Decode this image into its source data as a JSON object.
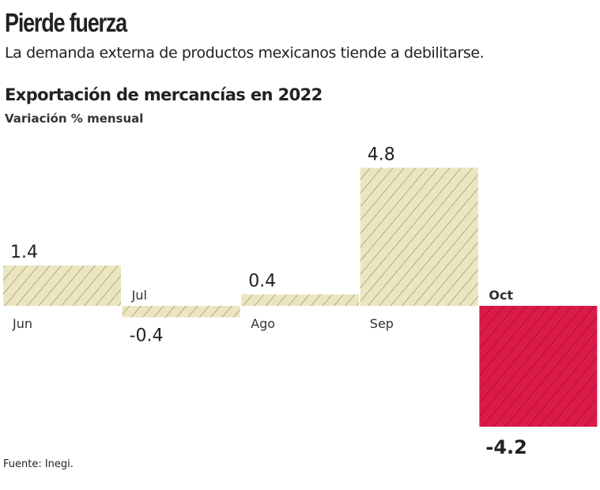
{
  "header": {
    "title": "Pierde fuerza",
    "subtitle": "La demanda externa de productos mexicanos tiende a debilitarse."
  },
  "chart_data": {
    "type": "bar",
    "title": "Exportación de mercancías en 2022",
    "ylabel": "Variación % mensual",
    "categories": [
      "Jun",
      "Jul",
      "Ago",
      "Sep",
      "Oct"
    ],
    "values": [
      1.4,
      -0.4,
      0.4,
      4.8,
      -4.2
    ],
    "value_labels": [
      "1.4",
      "-0.4",
      "0.4",
      "4.8",
      "-4.2"
    ],
    "highlight": "Oct",
    "colors": {
      "default": "#ece6c0",
      "highlight": "#dc1a48",
      "hatch_default": "#8a8560",
      "hatch_highlight": "#8a0f2c"
    },
    "grid": false
  },
  "footer": {
    "source": "Fuente: Inegi."
  }
}
